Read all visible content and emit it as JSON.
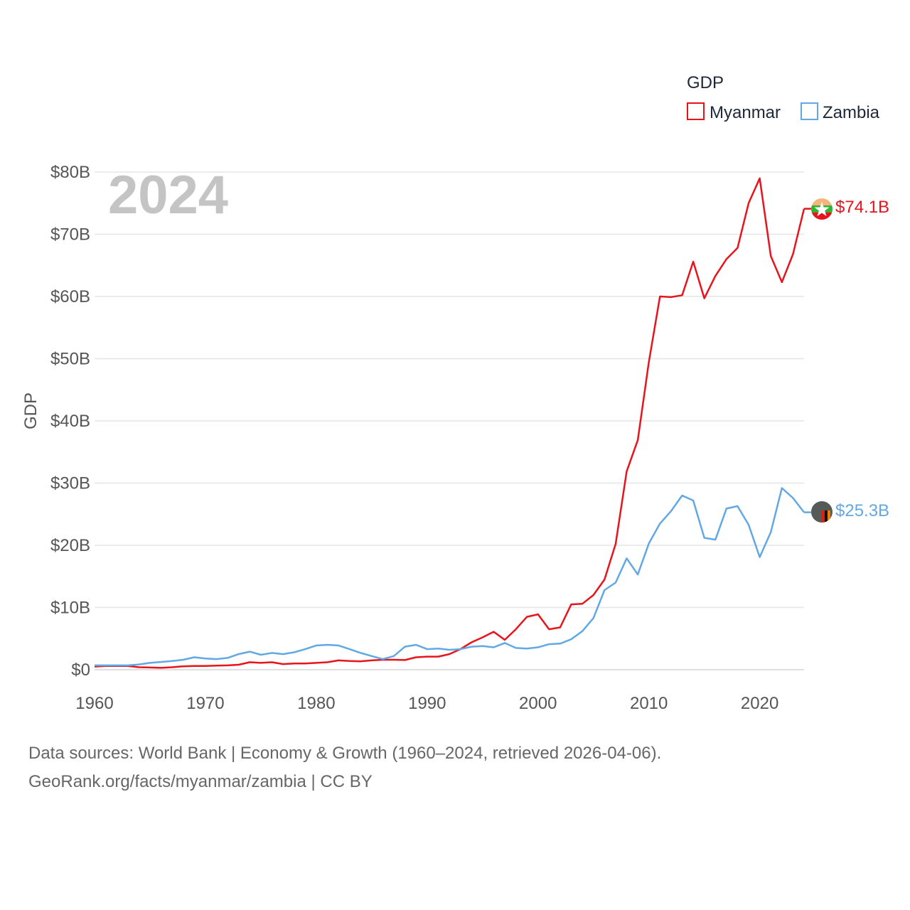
{
  "chart_data": {
    "type": "line",
    "legend_title": "GDP",
    "ylabel": "GDP",
    "xlabel": "",
    "year_overlay": "2024",
    "xlim": [
      1960,
      2024
    ],
    "ylim": [
      0,
      80
    ],
    "x_ticks": [
      1960,
      1970,
      1980,
      1990,
      2000,
      2010,
      2020
    ],
    "x_tick_labels": [
      "1960",
      "1970",
      "1980",
      "1990",
      "2000",
      "2010",
      "2020"
    ],
    "y_ticks": [
      0,
      10,
      20,
      30,
      40,
      50,
      60,
      70,
      80
    ],
    "y_tick_labels": [
      "$0",
      "$10B",
      "$20B",
      "$30B",
      "$40B",
      "$50B",
      "$60B",
      "$70B",
      "$80B"
    ],
    "grid": true,
    "legend_position": "top-right",
    "unit": "billion USD",
    "x": [
      1960,
      1961,
      1962,
      1963,
      1964,
      1965,
      1966,
      1967,
      1968,
      1969,
      1970,
      1971,
      1972,
      1973,
      1974,
      1975,
      1976,
      1977,
      1978,
      1979,
      1980,
      1981,
      1982,
      1983,
      1984,
      1985,
      1986,
      1987,
      1988,
      1989,
      1990,
      1991,
      1992,
      1993,
      1994,
      1995,
      1996,
      1997,
      1998,
      1999,
      2000,
      2001,
      2002,
      2003,
      2004,
      2005,
      2006,
      2007,
      2008,
      2009,
      2010,
      2011,
      2012,
      2013,
      2014,
      2015,
      2016,
      2017,
      2018,
      2019,
      2020,
      2021,
      2022,
      2023,
      2024
    ],
    "series": [
      {
        "name": "Myanmar",
        "color": "#e8141c",
        "end_label": "$74.1B",
        "marker_icon": "myanmar-flag-icon",
        "values": [
          0.5,
          0.6,
          0.6,
          0.6,
          0.4,
          0.35,
          0.3,
          0.4,
          0.55,
          0.6,
          0.6,
          0.65,
          0.7,
          0.8,
          1.2,
          1.1,
          1.2,
          0.9,
          1.0,
          1.0,
          1.1,
          1.2,
          1.5,
          1.4,
          1.35,
          1.5,
          1.6,
          1.6,
          1.55,
          2.0,
          2.1,
          2.1,
          2.5,
          3.3,
          4.4,
          5.2,
          6.1,
          4.8,
          6.5,
          8.5,
          8.9,
          6.5,
          6.8,
          10.5,
          10.6,
          12.0,
          14.5,
          20.2,
          31.9,
          36.9,
          49.5,
          60.0,
          59.9,
          60.2,
          65.6,
          59.7,
          63.3,
          66.0,
          67.8,
          75.0,
          79.0,
          66.5,
          62.3,
          66.8,
          74.1
        ]
      },
      {
        "name": "Zambia",
        "color": "#62a8e5",
        "end_label": "$25.3B",
        "marker_icon": "zambia-flag-icon",
        "values": [
          0.7,
          0.7,
          0.7,
          0.7,
          0.85,
          1.1,
          1.25,
          1.4,
          1.6,
          2.0,
          1.8,
          1.7,
          1.9,
          2.5,
          2.9,
          2.4,
          2.7,
          2.5,
          2.8,
          3.3,
          3.9,
          4.0,
          3.9,
          3.3,
          2.7,
          2.2,
          1.7,
          2.2,
          3.7,
          4.0,
          3.3,
          3.4,
          3.2,
          3.3,
          3.7,
          3.8,
          3.6,
          4.3,
          3.5,
          3.4,
          3.6,
          4.1,
          4.2,
          4.9,
          6.2,
          8.3,
          12.8,
          14.0,
          17.9,
          15.3,
          20.3,
          23.5,
          25.5,
          28.0,
          27.2,
          21.2,
          20.9,
          25.9,
          26.3,
          23.3,
          18.1,
          22.1,
          29.2,
          27.6,
          25.3
        ]
      }
    ]
  },
  "source": {
    "line1": "Data sources: World Bank | Economy & Growth (1960–2024, retrieved 2026-04-06).",
    "line2": "GeoRank.org/facts/myanmar/zambia | CC BY"
  }
}
